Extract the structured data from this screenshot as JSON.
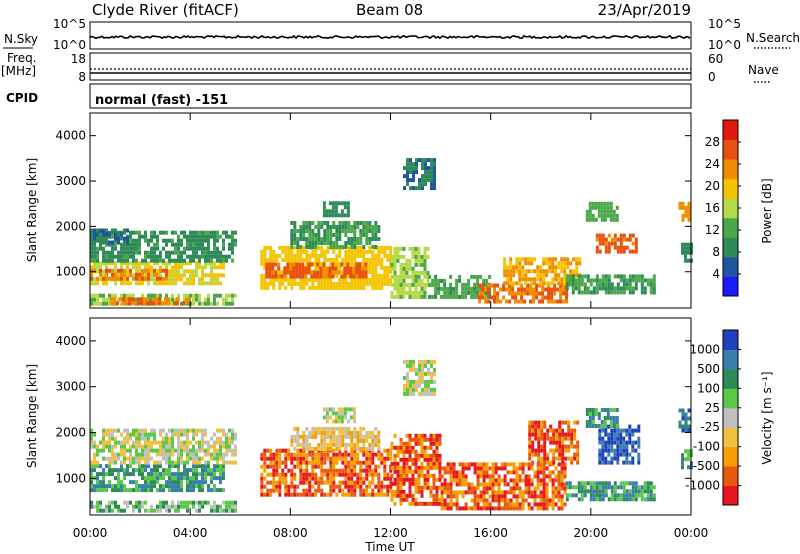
{
  "header": {
    "station": "Clyde River (fitACF)",
    "beam": "Beam 08",
    "date": "23/Apr/2019"
  },
  "panels": {
    "nsky": {
      "label": "N.Sky",
      "left_ticks": [
        "10^5",
        "10^0"
      ],
      "right_label": "N.Search",
      "right_ticks": [
        "10^5",
        "10^0"
      ]
    },
    "freq": {
      "label_line1": "Freq.",
      "label_line2": "[MHz]",
      "left_ticks": [
        "18",
        "8"
      ],
      "right_label": "Nave",
      "right_ticks": [
        "60",
        "0"
      ]
    },
    "cpid": {
      "label": "CPID",
      "text": "normal (fast) -151"
    }
  },
  "colors": {
    "power": [
      "#1a1aff",
      "#2255a0",
      "#2e8b57",
      "#4aa84a",
      "#b6d94a",
      "#f5c400",
      "#f08c00",
      "#e85010",
      "#e01a10"
    ],
    "velocity": [
      "#e8141e",
      "#e85a10",
      "#f5a000",
      "#f0c040",
      "#c0c0c0",
      "#5cc84a",
      "#2e8b57",
      "#3a7fb0",
      "#2040c0"
    ]
  },
  "chart_data": [
    {
      "type": "heatmap",
      "name": "power",
      "ylabel": "Slant Range [km]",
      "xlabel": "",
      "yticks": [
        "1000",
        "2000",
        "3000",
        "4000"
      ],
      "ylim": [
        200,
        4500
      ],
      "xlim": [
        "00:00",
        "24:00"
      ],
      "colorbar": {
        "label": "Power [dB]",
        "ticks": [
          "4",
          "8",
          "12",
          "16",
          "20",
          "24",
          "28"
        ],
        "range": [
          0,
          32
        ]
      },
      "regions": [
        {
          "t0": 0.0,
          "t1": 5.3,
          "r0": 700,
          "r1": 1200,
          "v": 20
        },
        {
          "t0": 0.0,
          "t1": 3.0,
          "r0": 800,
          "r1": 1050,
          "v": 28
        },
        {
          "t0": 0.0,
          "t1": 5.8,
          "r0": 1200,
          "r1": 1900,
          "v": 11
        },
        {
          "t0": 0.0,
          "t1": 1.5,
          "r0": 1600,
          "r1": 1900,
          "v": 8
        },
        {
          "t0": 0.0,
          "t1": 5.8,
          "r0": 250,
          "r1": 450,
          "v": 16
        },
        {
          "t0": 0.8,
          "t1": 4.0,
          "r0": 260,
          "r1": 360,
          "v": 28
        },
        {
          "t0": 6.8,
          "t1": 12.0,
          "r0": 600,
          "r1": 1500,
          "v": 22
        },
        {
          "t0": 7.0,
          "t1": 11.0,
          "r0": 850,
          "r1": 1150,
          "v": 29
        },
        {
          "t0": 8.0,
          "t1": 11.5,
          "r0": 1500,
          "r1": 2100,
          "v": 12
        },
        {
          "t0": 9.3,
          "t1": 10.3,
          "r0": 2200,
          "r1": 2500,
          "v": 10
        },
        {
          "t0": 12.0,
          "t1": 13.5,
          "r0": 400,
          "r1": 1500,
          "v": 17
        },
        {
          "t0": 12.5,
          "t1": 13.8,
          "r0": 2800,
          "r1": 3500,
          "v": 8
        },
        {
          "t0": 13.5,
          "t1": 16.0,
          "r0": 400,
          "r1": 900,
          "v": 13
        },
        {
          "t0": 15.5,
          "t1": 19.0,
          "r0": 300,
          "r1": 700,
          "v": 28
        },
        {
          "t0": 16.5,
          "t1": 19.5,
          "r0": 700,
          "r1": 1300,
          "v": 24
        },
        {
          "t0": 19.0,
          "t1": 22.5,
          "r0": 500,
          "r1": 900,
          "v": 12
        },
        {
          "t0": 20.2,
          "t1": 21.8,
          "r0": 1400,
          "r1": 1800,
          "v": 29
        },
        {
          "t0": 19.8,
          "t1": 21.0,
          "r0": 2100,
          "r1": 2500,
          "v": 14
        },
        {
          "t0": 23.5,
          "t1": 24.0,
          "r0": 2100,
          "r1": 2500,
          "v": 26
        },
        {
          "t0": 23.6,
          "t1": 24.0,
          "r0": 1200,
          "r1": 1600,
          "v": 10
        }
      ]
    },
    {
      "type": "heatmap",
      "name": "velocity",
      "ylabel": "Slant Range [km]",
      "xlabel": "Time UT",
      "xticks": [
        "00:00",
        "04:00",
        "08:00",
        "12:00",
        "16:00",
        "20:00",
        "00:00"
      ],
      "yticks": [
        "1000",
        "2000",
        "3000",
        "4000"
      ],
      "ylim": [
        200,
        4500
      ],
      "xlim": [
        "00:00",
        "24:00"
      ],
      "colorbar": {
        "label": "Velocity [m s^-1]",
        "ticks": [
          "-1000",
          "-500",
          "-100",
          "-25",
          "25",
          "100",
          "500",
          "1000"
        ]
      },
      "regions": [
        {
          "t0": 0.0,
          "t1": 5.3,
          "r0": 700,
          "r1": 1300,
          "v": 6
        },
        {
          "t0": 0.0,
          "t1": 5.8,
          "r0": 1300,
          "r1": 2000,
          "v": 4
        },
        {
          "t0": 0.0,
          "t1": 5.8,
          "r0": 250,
          "r1": 450,
          "v": 5
        },
        {
          "t0": 6.8,
          "t1": 12.0,
          "r0": 600,
          "r1": 1600,
          "v": 1
        },
        {
          "t0": 8.0,
          "t1": 11.5,
          "r0": 1600,
          "r1": 2100,
          "v": 3
        },
        {
          "t0": 9.3,
          "t1": 10.5,
          "r0": 2200,
          "r1": 2500,
          "v": 4
        },
        {
          "t0": 12.0,
          "t1": 14.0,
          "r0": 400,
          "r1": 1900,
          "v": 1
        },
        {
          "t0": 12.5,
          "t1": 13.8,
          "r0": 2800,
          "r1": 3500,
          "v": 4
        },
        {
          "t0": 14.0,
          "t1": 19.0,
          "r0": 300,
          "r1": 1300,
          "v": 1
        },
        {
          "t0": 17.5,
          "t1": 19.5,
          "r0": 1300,
          "r1": 2200,
          "v": 1
        },
        {
          "t0": 19.0,
          "t1": 22.5,
          "r0": 500,
          "r1": 900,
          "v": 6
        },
        {
          "t0": 20.3,
          "t1": 21.9,
          "r0": 1300,
          "r1": 2100,
          "v": 8
        },
        {
          "t0": 19.8,
          "t1": 21.0,
          "r0": 2100,
          "r1": 2500,
          "v": 6
        },
        {
          "t0": 23.5,
          "t1": 24.0,
          "r0": 2000,
          "r1": 2500,
          "v": 7
        },
        {
          "t0": 23.6,
          "t1": 24.0,
          "r0": 1200,
          "r1": 1600,
          "v": 6
        }
      ]
    }
  ]
}
